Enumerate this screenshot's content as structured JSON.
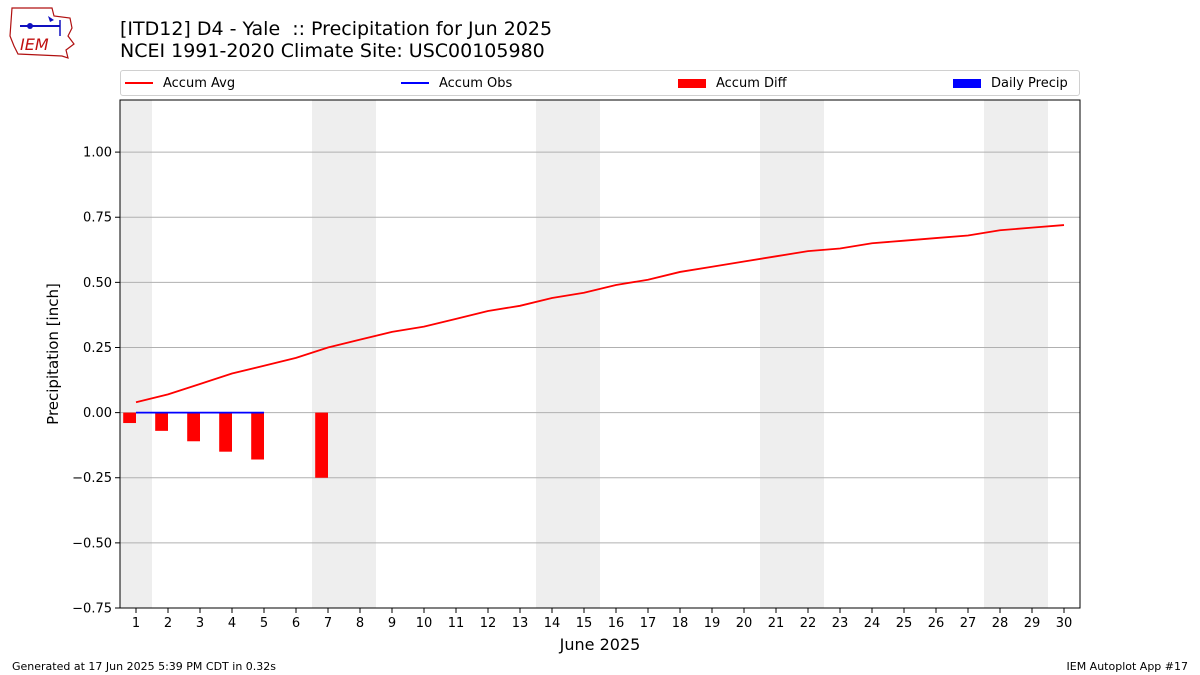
{
  "header": {
    "title": "[ITD12] D4 - Yale  :: Precipitation for Jun 2025",
    "subtitle": "NCEI 1991-2020 Climate Site: USC00105980",
    "logo_text": "IEM"
  },
  "legend": {
    "placement": "top",
    "items": [
      {
        "label": "Accum Avg",
        "kind": "line",
        "color": "#ff0000"
      },
      {
        "label": "Accum Obs",
        "kind": "line",
        "color": "#0000ff"
      },
      {
        "label": "Accum Diff",
        "kind": "box",
        "color": "#ff0000"
      },
      {
        "label": "Daily Precip",
        "kind": "box",
        "color": "#0000ff"
      }
    ]
  },
  "footer": {
    "generated": "Generated at 17 Jun 2025 5:39 PM CDT in 0.32s",
    "app": "IEM Autoplot App #17"
  },
  "chart_data": {
    "type": "line",
    "xlabel": "June 2025",
    "ylabel": "Precipitation [inch]",
    "xlim": [
      0.5,
      30.5
    ],
    "ylim": [
      -0.75,
      1.2
    ],
    "grid": "horizontal",
    "x": [
      1,
      2,
      3,
      4,
      5,
      6,
      7,
      8,
      9,
      10,
      11,
      12,
      13,
      14,
      15,
      16,
      17,
      18,
      19,
      20,
      21,
      22,
      23,
      24,
      25,
      26,
      27,
      28,
      29,
      30
    ],
    "x_tick_labels": [
      "1",
      "2",
      "3",
      "4",
      "5",
      "6",
      "7",
      "8",
      "9",
      "10",
      "11",
      "12",
      "13",
      "14",
      "15",
      "16",
      "17",
      "18",
      "19",
      "20",
      "21",
      "22",
      "23",
      "24",
      "25",
      "26",
      "27",
      "28",
      "29",
      "30"
    ],
    "y_ticks": [
      -0.75,
      -0.5,
      -0.25,
      0.0,
      0.25,
      0.5,
      0.75,
      1.0
    ],
    "y_tick_labels": [
      "−0.75",
      "−0.50",
      "−0.25",
      "0.00",
      "0.25",
      "0.50",
      "0.75",
      "1.00"
    ],
    "weekend_shading": [
      [
        0.5,
        1.5
      ],
      [
        6.5,
        8.5
      ],
      [
        13.5,
        15.5
      ],
      [
        20.5,
        22.5
      ],
      [
        27.5,
        29.5
      ]
    ],
    "series": [
      {
        "name": "Accum Avg",
        "type": "line",
        "color": "#ff0000",
        "x": [
          1,
          2,
          3,
          4,
          5,
          6,
          7,
          8,
          9,
          10,
          11,
          12,
          13,
          14,
          15,
          16,
          17,
          18,
          19,
          20,
          21,
          22,
          23,
          24,
          25,
          26,
          27,
          28,
          29,
          30
        ],
        "values": [
          0.04,
          0.07,
          0.11,
          0.15,
          0.18,
          0.21,
          0.25,
          0.28,
          0.31,
          0.33,
          0.36,
          0.39,
          0.41,
          0.44,
          0.46,
          0.49,
          0.51,
          0.54,
          0.56,
          0.58,
          0.6,
          0.62,
          0.63,
          0.65,
          0.66,
          0.67,
          0.68,
          0.7,
          0.71,
          0.72
        ]
      },
      {
        "name": "Accum Obs",
        "type": "line",
        "color": "#0000ff",
        "x": [
          1,
          2,
          3,
          4,
          5
        ],
        "values": [
          0.0,
          0.0,
          0.0,
          0.0,
          0.0
        ]
      },
      {
        "name": "Accum Diff",
        "type": "bar",
        "color": "#ff0000",
        "x": [
          1,
          2,
          3,
          4,
          5,
          7
        ],
        "values": [
          -0.04,
          -0.07,
          -0.11,
          -0.15,
          -0.18,
          -0.25
        ]
      },
      {
        "name": "Daily Precip",
        "type": "bar",
        "color": "#0000ff",
        "x": [],
        "values": []
      }
    ]
  }
}
